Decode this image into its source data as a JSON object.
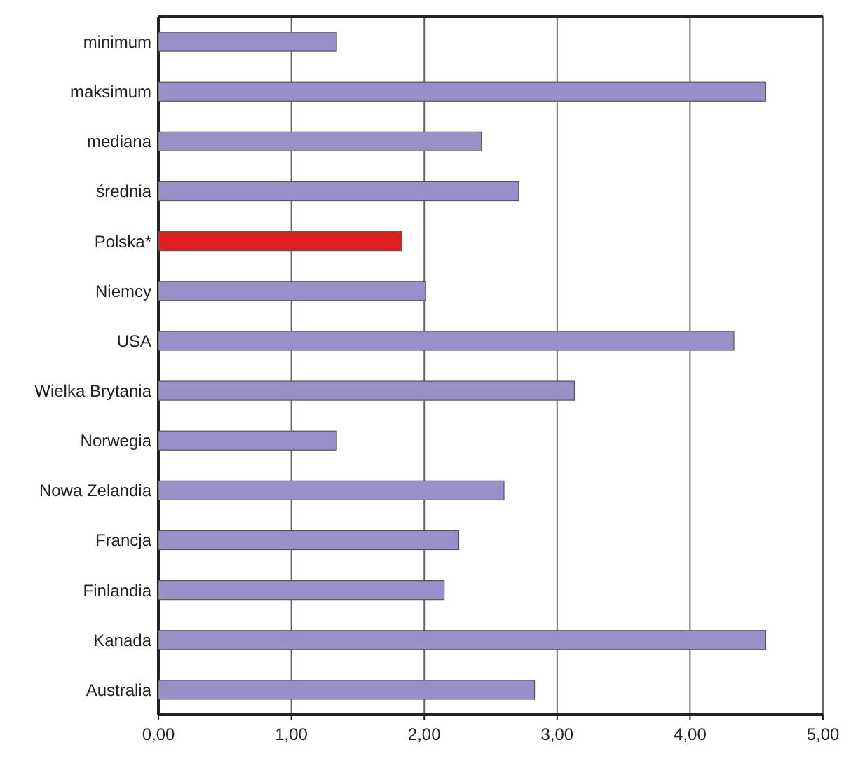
{
  "chart_data": {
    "type": "bar",
    "orientation": "horizontal",
    "categories": [
      "minimum",
      "maksimum",
      "mediana",
      "średnia",
      "Polska*",
      "Niemcy",
      "USA",
      "Wielka Brytania",
      "Norwegia",
      "Nowa Zelandia",
      "Francja",
      "Finlandia",
      "Kanada",
      "Australia"
    ],
    "values": [
      1.34,
      4.57,
      2.43,
      2.71,
      1.83,
      2.01,
      4.33,
      3.13,
      1.34,
      2.6,
      2.26,
      2.15,
      4.57,
      2.83
    ],
    "colors": [
      "#9890c8",
      "#9890c8",
      "#9890c8",
      "#9890c8",
      "#e0201e",
      "#9890c8",
      "#9890c8",
      "#9890c8",
      "#9890c8",
      "#9890c8",
      "#9890c8",
      "#9890c8",
      "#9890c8",
      "#9890c8"
    ],
    "xlim": [
      0,
      5
    ],
    "xticks": [
      {
        "value": 0,
        "label": "0,00"
      },
      {
        "value": 1,
        "label": "1,00"
      },
      {
        "value": 2,
        "label": "2,00"
      },
      {
        "value": 3,
        "label": "3,00"
      },
      {
        "value": 4,
        "label": "4,00"
      },
      {
        "value": 5,
        "label": "5,00"
      }
    ],
    "grid": "x"
  }
}
